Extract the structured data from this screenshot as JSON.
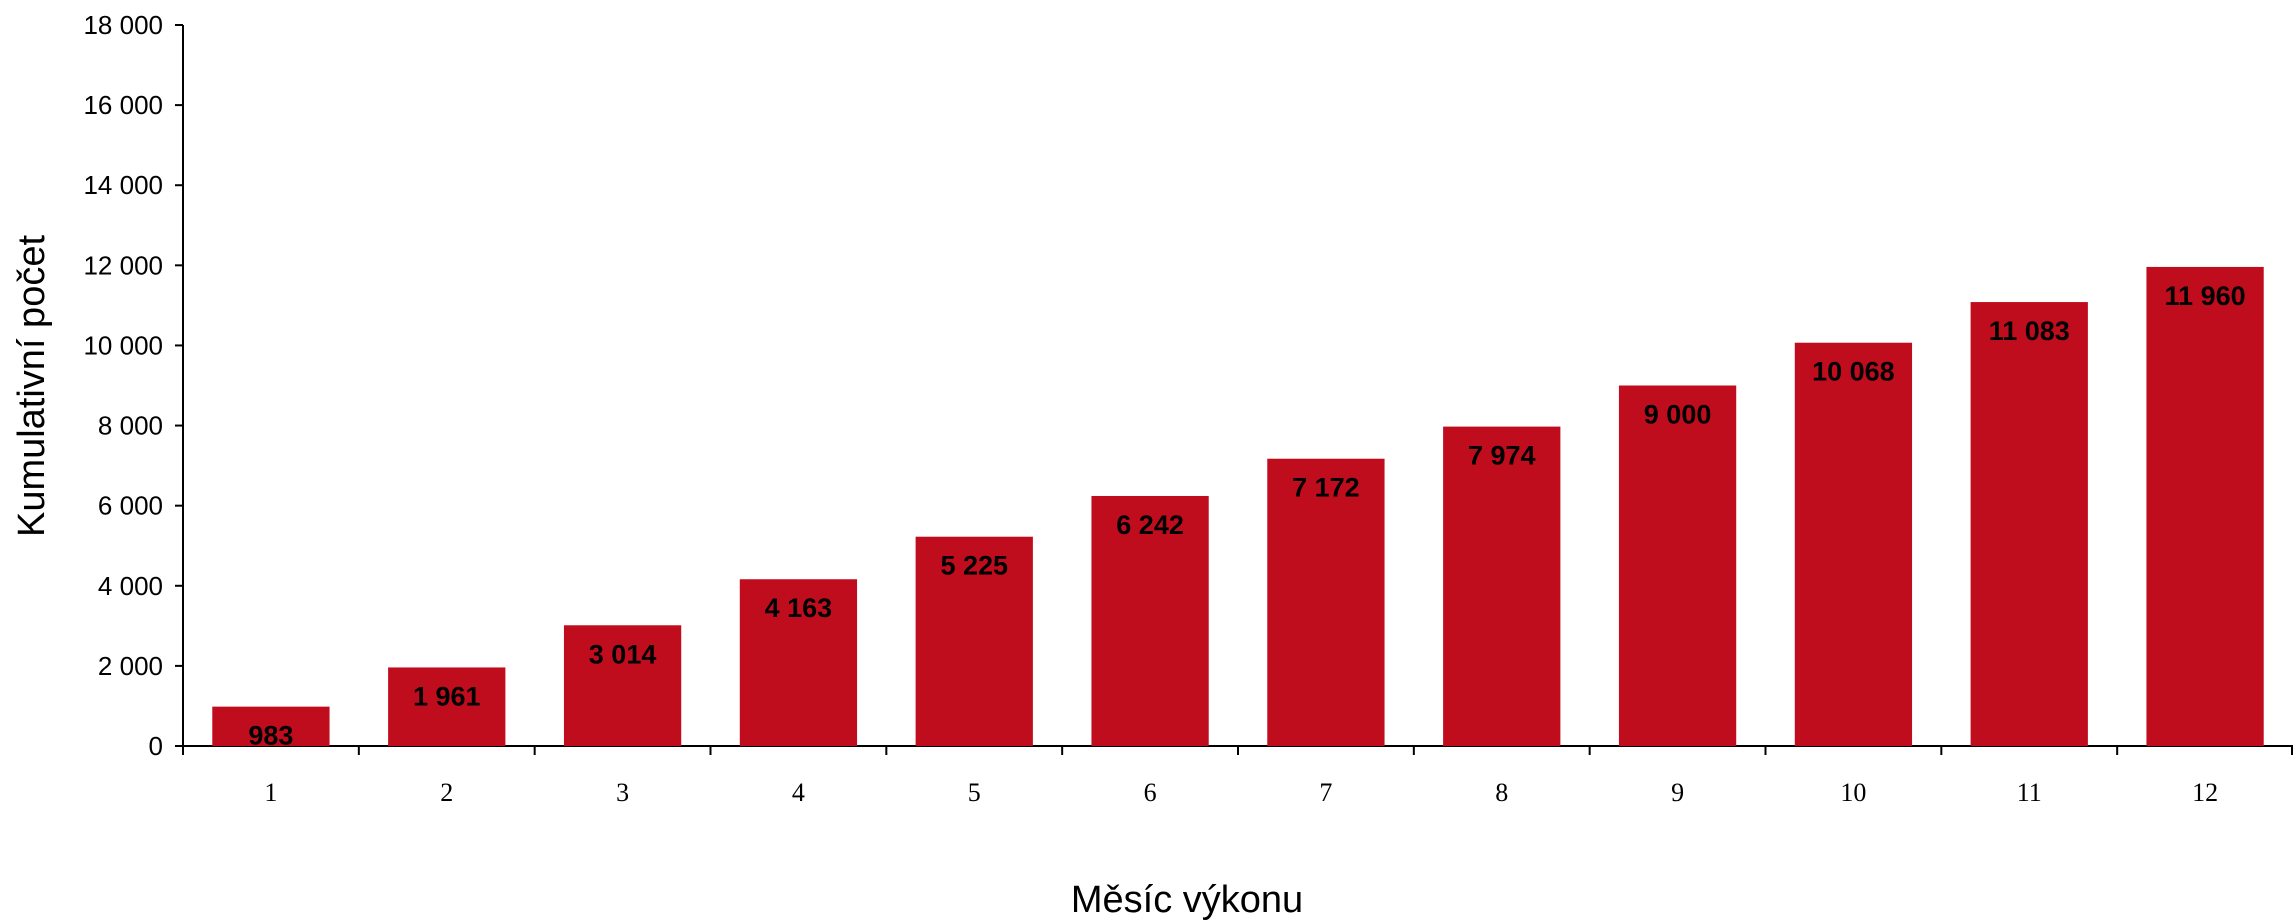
{
  "chart_data": {
    "type": "bar",
    "categories": [
      "1",
      "2",
      "3",
      "4",
      "5",
      "6",
      "7",
      "8",
      "9",
      "10",
      "11",
      "12"
    ],
    "values": [
      983,
      1961,
      3014,
      4163,
      5225,
      6242,
      7172,
      7974,
      9000,
      10068,
      11083,
      11960
    ],
    "data_labels": [
      "983",
      "1 961",
      "3 014",
      "4 163",
      "5 225",
      "6 242",
      "7 172",
      "7 974",
      "9 000",
      "10 068",
      "11 083",
      "11 960"
    ],
    "xlabel": "Měsíc výkonu",
    "ylabel": "Kumulativní počet",
    "ylim": [
      0,
      18000
    ],
    "yticks": [
      0,
      2000,
      4000,
      6000,
      8000,
      10000,
      12000,
      14000,
      16000,
      18000
    ],
    "ytick_labels": [
      "0",
      "2 000",
      "4 000",
      "6 000",
      "8 000",
      "10 000",
      "12 000",
      "14 000",
      "16 000",
      "18 000"
    ],
    "grid": false,
    "legend": "none",
    "bar_color": "#c00d1e"
  }
}
